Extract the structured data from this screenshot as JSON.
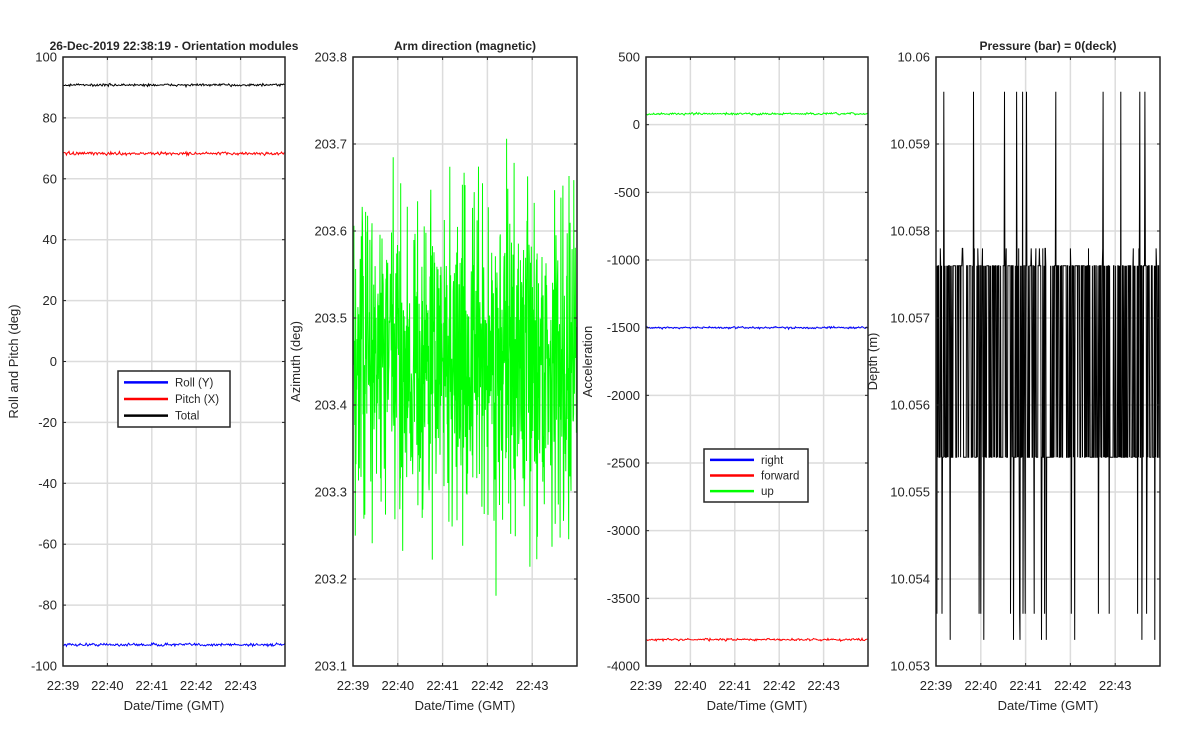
{
  "figure_background": "#ffffff",
  "chart_data": [
    {
      "type": "line",
      "title": "26-Dec-2019 22:38:19 - Orientation modules",
      "xlabel": "Date/Time (GMT)",
      "ylabel": "Roll and Pitch (deg)",
      "xlim": [
        "22:39",
        "22:44"
      ],
      "ylim": [
        -100,
        100
      ],
      "xticks": [
        "22:39",
        "22:40",
        "22:41",
        "22:42",
        "22:43"
      ],
      "yticks": [
        -100,
        -80,
        -60,
        -40,
        -20,
        0,
        20,
        40,
        60,
        80,
        100
      ],
      "grid": true,
      "legend": "center",
      "series": [
        {
          "name": "Roll (Y)",
          "color": "#0000ff",
          "mean": -93,
          "jitter": 0.25
        },
        {
          "name": "Pitch (X)",
          "color": "#ff0000",
          "mean": 68.3,
          "jitter": 0.25
        },
        {
          "name": "Total",
          "color": "#000000",
          "mean": 90.8,
          "jitter": 0.2
        }
      ]
    },
    {
      "type": "line",
      "title": "Arm direction (magnetic)",
      "xlabel": "Date/Time (GMT)",
      "ylabel": "Azimuth (deg)",
      "xlim": [
        "22:39",
        "22:44"
      ],
      "ylim": [
        203.1,
        203.8
      ],
      "xticks": [
        "22:39",
        "22:40",
        "22:41",
        "22:42",
        "22:43"
      ],
      "yticks": [
        "203.1",
        "203.2",
        "203.3",
        "203.4",
        "203.5",
        "203.6",
        "203.7",
        "203.8"
      ],
      "grid": true,
      "series": [
        {
          "name": "",
          "color": "#00ff00",
          "mean": 203.45,
          "jitter": 0.09,
          "min": 203.14,
          "max": 203.75
        }
      ]
    },
    {
      "type": "line",
      "title": "",
      "xlabel": "Date/Time (GMT)",
      "ylabel": "Acceleration",
      "xlim": [
        "22:39",
        "22:44"
      ],
      "ylim": [
        -4000,
        500
      ],
      "xticks": [
        "22:39",
        "22:40",
        "22:41",
        "22:42",
        "22:43"
      ],
      "yticks": [
        -4000,
        -3500,
        -3000,
        -2500,
        -2000,
        -1500,
        -1000,
        -500,
        0,
        500
      ],
      "grid": true,
      "legend": "lower-center",
      "series": [
        {
          "name": "right",
          "color": "#0000ff",
          "mean": -1500,
          "jitter": 4
        },
        {
          "name": "forward",
          "color": "#ff0000",
          "mean": -3805,
          "jitter": 4
        },
        {
          "name": "up",
          "color": "#00ff00",
          "mean": 80,
          "jitter": 4
        }
      ]
    },
    {
      "type": "line",
      "title": "Pressure (bar) = 0(deck)",
      "xlabel": "Date/Time (GMT)",
      "ylabel": "Depth (m)",
      "xlim": [
        "22:39",
        "22:44"
      ],
      "ylim": [
        "10.053",
        "10.06"
      ],
      "xticks": [
        "22:39",
        "22:40",
        "22:41",
        "22:42",
        "22:43"
      ],
      "yticks": [
        "10.053",
        "10.054",
        "10.055",
        "10.056",
        "10.057",
        "10.058",
        "10.059",
        "10.06"
      ],
      "grid": true,
      "series": [
        {
          "name": "",
          "color": "#000000",
          "levels": [
            10.0533,
            10.0536,
            10.0554,
            10.0576,
            10.0578,
            10.0596
          ]
        }
      ]
    }
  ]
}
